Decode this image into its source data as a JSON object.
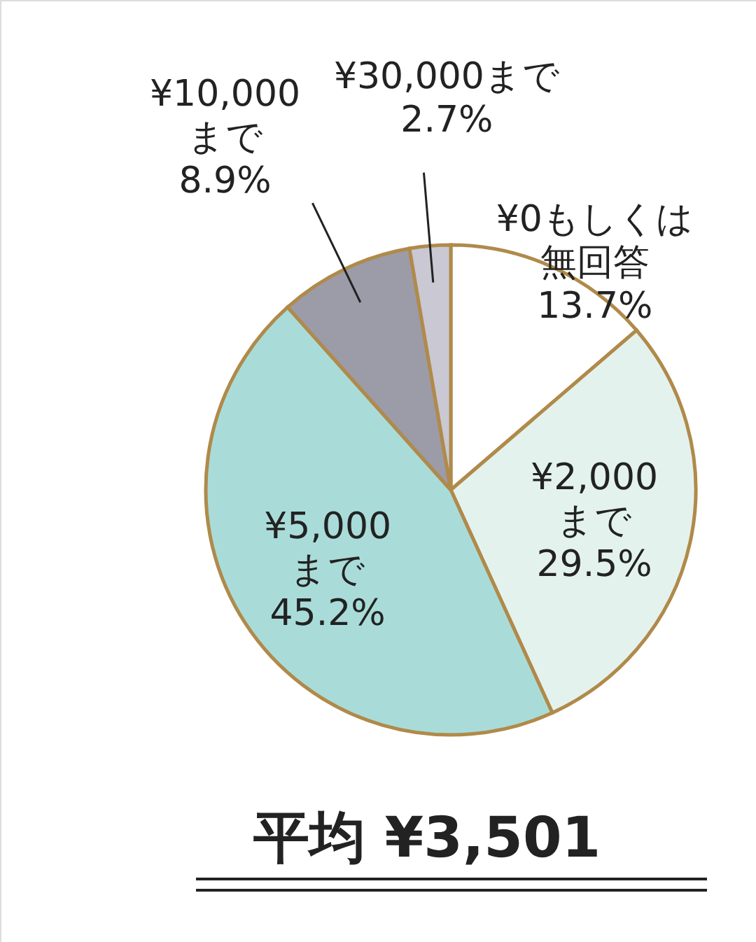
{
  "chart_data": {
    "type": "pie",
    "categories": [
      "¥0もしくは無回答",
      "¥2,000まで",
      "¥5,000まで",
      "¥10,000まで",
      "¥30,000まで"
    ],
    "values": [
      13.7,
      29.5,
      45.2,
      8.9,
      2.7
    ],
    "value_labels": [
      "13.7%",
      "29.5%",
      "45.2%",
      "8.9%",
      "2.7%"
    ],
    "colors": [
      "#ffffff",
      "#e4f2ee",
      "#a9dcd9",
      "#9c9ba8",
      "#c9c8d3"
    ],
    "annotations": [
      "平均 ¥3,501"
    ]
  }
}
